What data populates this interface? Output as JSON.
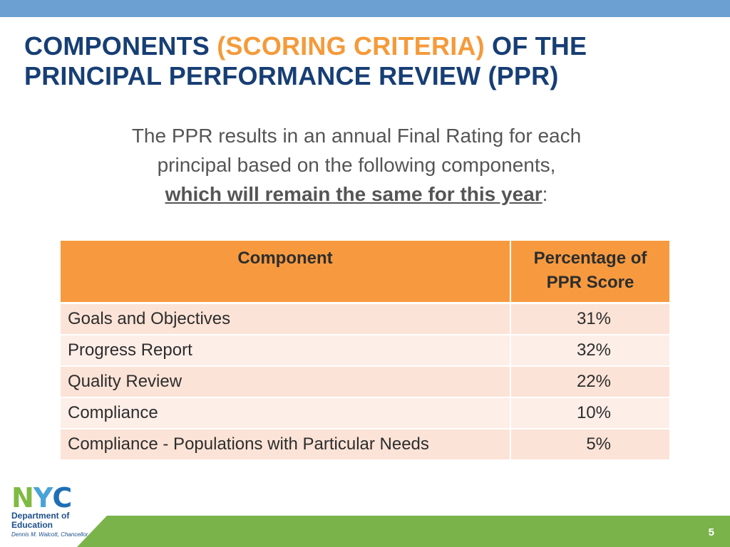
{
  "colors": {
    "top_bar": "#6c9fd2",
    "title": "#173e75",
    "title_accent": "#f59a3a",
    "table_header": "#f79a3f",
    "row_odd": "#fce3d7",
    "row_even": "#fdeee8",
    "footer_green": "#7ab34a"
  },
  "title": {
    "part1": "COMPONENTS ",
    "accent": "(SCORING CRITERIA)",
    "part2": " OF THE PRINCIPAL PERFORMANCE REVIEW (PPR)"
  },
  "intro": {
    "line1": "The PPR results in an annual Final Rating for each",
    "line2": "principal based on the following components,",
    "emphasis": "which will remain the same for this year",
    "suffix": ":"
  },
  "table": {
    "headers": [
      "Component",
      "Percentage of PPR Score"
    ],
    "rows": [
      {
        "component": "Goals and Objectives",
        "percentage": "31%"
      },
      {
        "component": "Progress Report",
        "percentage": "32%"
      },
      {
        "component": "Quality Review",
        "percentage": "22%"
      },
      {
        "component": "Compliance",
        "percentage": "10%"
      },
      {
        "component": "Compliance - Populations with Particular Needs",
        "percentage": "5%"
      }
    ]
  },
  "logo": {
    "nyc": [
      "N",
      "Y",
      "C"
    ],
    "department_line1": "Department of",
    "department_line2": "Education",
    "chancellor": "Dennis M. Walcott, Chancellor"
  },
  "page_number": "5"
}
